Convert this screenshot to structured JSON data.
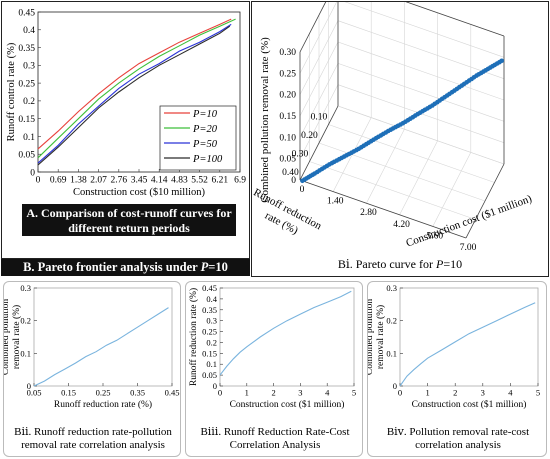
{
  "colors": {
    "p10": "#e8413b",
    "p20": "#3fbf3a",
    "p50": "#2a33d8",
    "p100": "#2b2b2b",
    "pareto_points": "#1e6fb8",
    "small_line": "#7ab4de"
  },
  "captions": {
    "a_line1": "A.  Comparison of cost-runoff curves for",
    "a_line2": "different return periods",
    "b_prefix": "B.  Pareto frontier analysis under ",
    "b_p": "P",
    "b_suffix": "=10",
    "bi_prefix": "Bⅰ. Pareto curve for ",
    "bi_p": "P",
    "bi_suffix": "=10",
    "bii_line1": "Bⅱ. Runoff reduction rate-pollution",
    "bii_line2": "removal rate correlation analysis",
    "biii_line1": "Bⅲ. Runoff Reduction Rate-Cost",
    "biii_line2": "Correlation Analysis",
    "biv_line1": "Bⅳ. Pollution removal rate-cost",
    "biv_line2": "correlation analysis"
  },
  "chart_data": [
    {
      "id": "A",
      "type": "line",
      "xlabel": "Construction cost ($10 million)",
      "ylabel": "Runoff control rate (%)",
      "xlim": [
        0,
        6.9
      ],
      "ylim": [
        0,
        0.45
      ],
      "xticks": [
        "0",
        "0.69",
        "1.38",
        "2.07",
        "2.76",
        "3.45",
        "4.14",
        "4.83",
        "5.52",
        "6.21",
        "6.9"
      ],
      "yticks": [
        "0",
        "0.05",
        "0.1",
        "0.15",
        "0.2",
        "0.25",
        "0.3",
        "0.35",
        "0.4",
        "0.45"
      ],
      "legend_position": "middle-right",
      "series": [
        {
          "name": "P=10",
          "x": [
            0,
            0.69,
            1.38,
            2.07,
            2.76,
            3.45,
            4.14,
            4.83,
            5.52,
            6.21,
            6.6
          ],
          "y": [
            0.065,
            0.115,
            0.17,
            0.22,
            0.265,
            0.305,
            0.335,
            0.365,
            0.39,
            0.415,
            0.43
          ]
        },
        {
          "name": "P=20",
          "x": [
            0,
            0.69,
            1.38,
            2.07,
            2.76,
            3.45,
            4.14,
            4.83,
            5.52,
            6.21,
            6.75
          ],
          "y": [
            0.04,
            0.095,
            0.15,
            0.205,
            0.25,
            0.29,
            0.325,
            0.355,
            0.385,
            0.41,
            0.43
          ]
        },
        {
          "name": "P=50",
          "x": [
            0,
            0.69,
            1.38,
            2.07,
            2.76,
            3.45,
            4.14,
            4.83,
            5.52,
            6.21,
            6.6
          ],
          "y": [
            0.025,
            0.075,
            0.135,
            0.185,
            0.235,
            0.275,
            0.305,
            0.34,
            0.365,
            0.395,
            0.415
          ]
        },
        {
          "name": "P=100",
          "x": [
            0,
            0.69,
            1.38,
            2.07,
            2.76,
            3.45,
            4.14,
            4.83,
            5.52,
            6.21,
            6.55
          ],
          "y": [
            0.02,
            0.07,
            0.125,
            0.18,
            0.225,
            0.265,
            0.3,
            0.33,
            0.36,
            0.39,
            0.41
          ]
        }
      ]
    },
    {
      "id": "Bi",
      "type": "scatter",
      "subtype": "3d",
      "xlabel": "Construction cost ($1 million)",
      "ylabel_line1": "Runoff reduction",
      "ylabel_line2": "rate (%)",
      "zlabel": "Combined pollution removal rate (%)",
      "xticks": [
        "0",
        "1.40",
        "2.80",
        "4.20",
        "5.60",
        "7.00"
      ],
      "yticks": [
        "0.10",
        "0.20",
        "0.30",
        "0.40"
      ],
      "zticks": [
        "0",
        "0.05",
        "0.10",
        "0.15",
        "0.20",
        "0.25",
        "0.30"
      ],
      "xlim": [
        0,
        7
      ],
      "ylim": [
        0.05,
        0.45
      ],
      "zlim": [
        0,
        0.3
      ],
      "points": {
        "cost": [
          0.1,
          0.5,
          1.0,
          1.5,
          2.0,
          2.5,
          3.0,
          3.5,
          4.0,
          4.5,
          5.0,
          5.5,
          6.0,
          6.5,
          7.0
        ],
        "runoff": [
          0.05,
          0.08,
          0.11,
          0.14,
          0.17,
          0.2,
          0.23,
          0.26,
          0.29,
          0.32,
          0.35,
          0.38,
          0.41,
          0.43,
          0.45
        ],
        "pollution": [
          0.0,
          0.012,
          0.03,
          0.045,
          0.06,
          0.078,
          0.095,
          0.11,
          0.128,
          0.145,
          0.165,
          0.185,
          0.205,
          0.225,
          0.245
        ]
      }
    },
    {
      "id": "Bii",
      "type": "line",
      "xlabel": "Runoff reduction rate (%)",
      "ylabel_line1": "Combined pollution",
      "ylabel_line2": "removal rate (%)",
      "xlim": [
        0.05,
        0.45
      ],
      "ylim": [
        0,
        0.3
      ],
      "xticks": [
        "0.05",
        "0.15",
        "0.25",
        "0.35",
        "0.45"
      ],
      "yticks": [
        "0",
        "0.1",
        "0.2",
        "0.3"
      ],
      "x": [
        0.05,
        0.08,
        0.11,
        0.14,
        0.17,
        0.2,
        0.23,
        0.26,
        0.29,
        0.32,
        0.35,
        0.38,
        0.41,
        0.44
      ],
      "y": [
        0.0,
        0.015,
        0.035,
        0.052,
        0.07,
        0.09,
        0.105,
        0.125,
        0.14,
        0.16,
        0.18,
        0.2,
        0.22,
        0.24
      ]
    },
    {
      "id": "Biii",
      "type": "line",
      "xlabel": "Construction cost ($1 million)",
      "ylabel": "Runoff reduction rate (%)",
      "xlim": [
        0,
        5
      ],
      "ylim": [
        0,
        0.45
      ],
      "xticks": [
        "0",
        "1",
        "2",
        "3",
        "4",
        "5"
      ],
      "yticks": [
        "0",
        "0.05",
        "0.1",
        "0.15",
        "0.2",
        "0.25",
        "0.3",
        "0.35",
        "0.4",
        "0.45"
      ],
      "x": [
        0.0,
        0.25,
        0.5,
        0.75,
        1.0,
        1.5,
        2.0,
        2.5,
        3.0,
        3.5,
        4.0,
        4.5,
        4.9
      ],
      "y": [
        0.05,
        0.09,
        0.125,
        0.155,
        0.18,
        0.225,
        0.265,
        0.3,
        0.33,
        0.36,
        0.385,
        0.41,
        0.435
      ]
    },
    {
      "id": "Biv",
      "type": "line",
      "xlabel": "Construction cost ($1 million)",
      "ylabel_line1": "Combined pollution",
      "ylabel_line2": "removal rate (%)",
      "xlim": [
        0,
        5
      ],
      "ylim": [
        0,
        0.3
      ],
      "xticks": [
        "0",
        "1",
        "2",
        "3",
        "4",
        "5"
      ],
      "yticks": [
        "0",
        "0.1",
        "0.2",
        "0.3"
      ],
      "x": [
        0.0,
        0.25,
        0.5,
        0.75,
        1.0,
        1.5,
        2.0,
        2.5,
        3.0,
        3.5,
        4.0,
        4.5,
        4.9
      ],
      "y": [
        0.0,
        0.03,
        0.05,
        0.068,
        0.085,
        0.11,
        0.135,
        0.16,
        0.18,
        0.2,
        0.22,
        0.24,
        0.255
      ]
    }
  ]
}
